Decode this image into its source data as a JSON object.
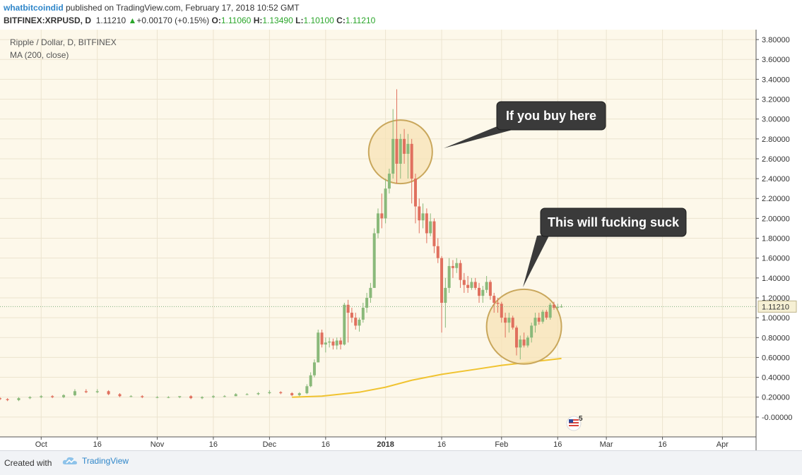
{
  "header": {
    "author": "whatbitcoindid",
    "published": "published on TradingView.com, February 17, 2018 10:52 GMT",
    "symbol": "BITFINEX:XRPUSD, D",
    "last": "1.11210",
    "change_arrow": "▲",
    "change": "+0.00170 (+0.15%)",
    "o_label": "O:",
    "o_val": "1.11060",
    "h_label": "H:",
    "h_val": "1.13490",
    "l_label": "L:",
    "l_val": "1.10100",
    "c_label": "C:",
    "c_val": "1.11210"
  },
  "legend": {
    "title": "Ripple / Dollar, D, BITFINEX",
    "indicator": "MA (200, close)"
  },
  "callouts": [
    {
      "text": "If you buy here"
    },
    {
      "text": "This will fucking suck"
    }
  ],
  "last_price_label": "1.11210",
  "flag_count": "5",
  "footer": {
    "created": "Created with",
    "brand": "TradingView"
  },
  "colors": {
    "background": "#fdf8ea",
    "up": "#8ab97a",
    "down": "#e0705e",
    "ma": "#f0c330",
    "circle_fill": "#f7e3b5",
    "circle_stroke": "#c9a75c",
    "callout_bg": "#3a3a3a",
    "last_price_bg": "#f6f0d4"
  },
  "chart_data": {
    "type": "candlestick",
    "title": "Ripple / Dollar, D, BITFINEX",
    "ylim": [
      -0.2,
      3.9
    ],
    "y_ticks": [
      "3.80000",
      "3.60000",
      "3.40000",
      "3.20000",
      "3.00000",
      "2.80000",
      "2.60000",
      "2.40000",
      "2.20000",
      "2.00000",
      "1.80000",
      "1.60000",
      "1.40000",
      "1.20000",
      "1.00000",
      "0.80000",
      "0.60000",
      "0.40000",
      "0.20000",
      "-0.00000"
    ],
    "y_tick_values": [
      3.8,
      3.6,
      3.4,
      3.2,
      3.0,
      2.8,
      2.6,
      2.4,
      2.2,
      2.0,
      1.8,
      1.6,
      1.4,
      1.2,
      1.0,
      0.8,
      0.6,
      0.4,
      0.2,
      0.0
    ],
    "x_labels": [
      {
        "label": "Oct",
        "date": "2017-10-01",
        "bold": false
      },
      {
        "label": "16",
        "date": "2017-10-16",
        "bold": false
      },
      {
        "label": "Nov",
        "date": "2017-11-01",
        "bold": false
      },
      {
        "label": "16",
        "date": "2017-11-16",
        "bold": false
      },
      {
        "label": "Dec",
        "date": "2017-12-01",
        "bold": false
      },
      {
        "label": "16",
        "date": "2017-12-16",
        "bold": false
      },
      {
        "label": "2018",
        "date": "2018-01-01",
        "bold": true
      },
      {
        "label": "16",
        "date": "2018-01-16",
        "bold": false
      },
      {
        "label": "Feb",
        "date": "2018-02-01",
        "bold": false
      },
      {
        "label": "16",
        "date": "2018-02-16",
        "bold": false
      },
      {
        "label": "Mar",
        "date": "2018-03-01",
        "bold": false
      },
      {
        "label": "16",
        "date": "2018-03-16",
        "bold": false
      },
      {
        "label": "Apr",
        "date": "2018-04-01",
        "bold": false
      }
    ],
    "x_start": "2017-09-20",
    "x_end": "2018-04-10",
    "last_price": 1.1121,
    "candles": [
      {
        "date": "2017-09-20",
        "o": 0.19,
        "h": 0.2,
        "l": 0.17,
        "c": 0.18
      },
      {
        "date": "2017-09-22",
        "o": 0.18,
        "h": 0.19,
        "l": 0.16,
        "c": 0.17
      },
      {
        "date": "2017-09-25",
        "o": 0.17,
        "h": 0.2,
        "l": 0.16,
        "c": 0.19
      },
      {
        "date": "2017-09-28",
        "o": 0.19,
        "h": 0.21,
        "l": 0.18,
        "c": 0.2
      },
      {
        "date": "2017-10-01",
        "o": 0.2,
        "h": 0.22,
        "l": 0.19,
        "c": 0.21
      },
      {
        "date": "2017-10-04",
        "o": 0.21,
        "h": 0.22,
        "l": 0.19,
        "c": 0.2
      },
      {
        "date": "2017-10-07",
        "o": 0.2,
        "h": 0.23,
        "l": 0.19,
        "c": 0.22
      },
      {
        "date": "2017-10-10",
        "o": 0.22,
        "h": 0.28,
        "l": 0.21,
        "c": 0.26
      },
      {
        "date": "2017-10-13",
        "o": 0.26,
        "h": 0.28,
        "l": 0.24,
        "c": 0.25
      },
      {
        "date": "2017-10-16",
        "o": 0.25,
        "h": 0.28,
        "l": 0.24,
        "c": 0.26
      },
      {
        "date": "2017-10-19",
        "o": 0.26,
        "h": 0.27,
        "l": 0.22,
        "c": 0.23
      },
      {
        "date": "2017-10-22",
        "o": 0.23,
        "h": 0.24,
        "l": 0.2,
        "c": 0.21
      },
      {
        "date": "2017-10-25",
        "o": 0.21,
        "h": 0.22,
        "l": 0.2,
        "c": 0.21
      },
      {
        "date": "2017-10-28",
        "o": 0.21,
        "h": 0.22,
        "l": 0.19,
        "c": 0.2
      },
      {
        "date": "2017-11-01",
        "o": 0.2,
        "h": 0.21,
        "l": 0.19,
        "c": 0.2
      },
      {
        "date": "2017-11-04",
        "o": 0.2,
        "h": 0.21,
        "l": 0.19,
        "c": 0.2
      },
      {
        "date": "2017-11-07",
        "o": 0.2,
        "h": 0.21,
        "l": 0.19,
        "c": 0.21
      },
      {
        "date": "2017-11-10",
        "o": 0.21,
        "h": 0.22,
        "l": 0.18,
        "c": 0.19
      },
      {
        "date": "2017-11-13",
        "o": 0.19,
        "h": 0.21,
        "l": 0.18,
        "c": 0.2
      },
      {
        "date": "2017-11-16",
        "o": 0.2,
        "h": 0.22,
        "l": 0.19,
        "c": 0.21
      },
      {
        "date": "2017-11-19",
        "o": 0.21,
        "h": 0.22,
        "l": 0.2,
        "c": 0.21
      },
      {
        "date": "2017-11-22",
        "o": 0.21,
        "h": 0.24,
        "l": 0.21,
        "c": 0.23
      },
      {
        "date": "2017-11-25",
        "o": 0.23,
        "h": 0.24,
        "l": 0.22,
        "c": 0.23
      },
      {
        "date": "2017-11-28",
        "o": 0.23,
        "h": 0.25,
        "l": 0.22,
        "c": 0.24
      },
      {
        "date": "2017-12-01",
        "o": 0.24,
        "h": 0.27,
        "l": 0.23,
        "c": 0.25
      },
      {
        "date": "2017-12-04",
        "o": 0.25,
        "h": 0.26,
        "l": 0.23,
        "c": 0.24
      },
      {
        "date": "2017-12-07",
        "o": 0.24,
        "h": 0.25,
        "l": 0.21,
        "c": 0.22
      },
      {
        "date": "2017-12-09",
        "o": 0.22,
        "h": 0.25,
        "l": 0.21,
        "c": 0.24
      },
      {
        "date": "2017-12-11",
        "o": 0.24,
        "h": 0.33,
        "l": 0.23,
        "c": 0.31
      },
      {
        "date": "2017-12-12",
        "o": 0.31,
        "h": 0.45,
        "l": 0.3,
        "c": 0.42
      },
      {
        "date": "2017-12-13",
        "o": 0.42,
        "h": 0.58,
        "l": 0.4,
        "c": 0.55
      },
      {
        "date": "2017-12-14",
        "o": 0.55,
        "h": 0.88,
        "l": 0.55,
        "c": 0.85
      },
      {
        "date": "2017-12-15",
        "o": 0.85,
        "h": 0.88,
        "l": 0.7,
        "c": 0.73
      },
      {
        "date": "2017-12-16",
        "o": 0.73,
        "h": 0.8,
        "l": 0.65,
        "c": 0.75
      },
      {
        "date": "2017-12-17",
        "o": 0.75,
        "h": 0.8,
        "l": 0.7,
        "c": 0.76
      },
      {
        "date": "2017-12-18",
        "o": 0.76,
        "h": 0.79,
        "l": 0.68,
        "c": 0.72
      },
      {
        "date": "2017-12-19",
        "o": 0.72,
        "h": 0.8,
        "l": 0.68,
        "c": 0.77
      },
      {
        "date": "2017-12-20",
        "o": 0.77,
        "h": 0.8,
        "l": 0.68,
        "c": 0.73
      },
      {
        "date": "2017-12-21",
        "o": 0.73,
        "h": 1.15,
        "l": 0.72,
        "c": 1.13
      },
      {
        "date": "2017-12-22",
        "o": 1.13,
        "h": 1.18,
        "l": 0.75,
        "c": 1.05
      },
      {
        "date": "2017-12-23",
        "o": 1.05,
        "h": 1.1,
        "l": 0.95,
        "c": 1.0
      },
      {
        "date": "2017-12-24",
        "o": 1.0,
        "h": 1.05,
        "l": 0.88,
        "c": 0.92
      },
      {
        "date": "2017-12-25",
        "o": 0.92,
        "h": 1.0,
        "l": 0.86,
        "c": 0.98
      },
      {
        "date": "2017-12-26",
        "o": 0.98,
        "h": 1.15,
        "l": 0.95,
        "c": 1.1
      },
      {
        "date": "2017-12-27",
        "o": 1.1,
        "h": 1.25,
        "l": 1.05,
        "c": 1.2
      },
      {
        "date": "2017-12-28",
        "o": 1.2,
        "h": 1.35,
        "l": 1.15,
        "c": 1.3
      },
      {
        "date": "2017-12-29",
        "o": 1.3,
        "h": 1.9,
        "l": 1.3,
        "c": 1.85
      },
      {
        "date": "2017-12-30",
        "o": 1.85,
        "h": 2.1,
        "l": 1.8,
        "c": 2.05
      },
      {
        "date": "2017-12-31",
        "o": 2.05,
        "h": 2.25,
        "l": 1.9,
        "c": 2.0
      },
      {
        "date": "2018-01-01",
        "o": 2.0,
        "h": 2.4,
        "l": 1.95,
        "c": 2.3
      },
      {
        "date": "2018-01-02",
        "o": 2.3,
        "h": 2.5,
        "l": 2.25,
        "c": 2.45
      },
      {
        "date": "2018-01-03",
        "o": 2.45,
        "h": 3.1,
        "l": 2.4,
        "c": 2.8
      },
      {
        "date": "2018-01-04",
        "o": 2.8,
        "h": 3.3,
        "l": 2.35,
        "c": 2.55
      },
      {
        "date": "2018-01-05",
        "o": 2.55,
        "h": 2.85,
        "l": 2.4,
        "c": 2.8
      },
      {
        "date": "2018-01-06",
        "o": 2.8,
        "h": 2.9,
        "l": 2.55,
        "c": 2.65
      },
      {
        "date": "2018-01-07",
        "o": 2.65,
        "h": 2.85,
        "l": 2.4,
        "c": 2.75
      },
      {
        "date": "2018-01-08",
        "o": 2.75,
        "h": 2.8,
        "l": 2.15,
        "c": 2.4
      },
      {
        "date": "2018-01-09",
        "o": 2.4,
        "h": 2.45,
        "l": 1.95,
        "c": 2.12
      },
      {
        "date": "2018-01-10",
        "o": 2.12,
        "h": 2.2,
        "l": 1.85,
        "c": 1.98
      },
      {
        "date": "2018-01-11",
        "o": 1.98,
        "h": 2.15,
        "l": 1.9,
        "c": 2.05
      },
      {
        "date": "2018-01-12",
        "o": 2.05,
        "h": 2.1,
        "l": 1.75,
        "c": 1.85
      },
      {
        "date": "2018-01-13",
        "o": 1.85,
        "h": 2.05,
        "l": 1.82,
        "c": 1.97
      },
      {
        "date": "2018-01-14",
        "o": 1.97,
        "h": 2.0,
        "l": 1.65,
        "c": 1.72
      },
      {
        "date": "2018-01-15",
        "o": 1.72,
        "h": 1.8,
        "l": 1.55,
        "c": 1.6
      },
      {
        "date": "2018-01-16",
        "o": 1.6,
        "h": 1.62,
        "l": 0.85,
        "c": 1.15
      },
      {
        "date": "2018-01-17",
        "o": 1.15,
        "h": 1.4,
        "l": 0.9,
        "c": 1.3
      },
      {
        "date": "2018-01-18",
        "o": 1.3,
        "h": 1.6,
        "l": 1.25,
        "c": 1.52
      },
      {
        "date": "2018-01-19",
        "o": 1.52,
        "h": 1.58,
        "l": 1.4,
        "c": 1.5
      },
      {
        "date": "2018-01-20",
        "o": 1.5,
        "h": 1.6,
        "l": 1.45,
        "c": 1.55
      },
      {
        "date": "2018-01-21",
        "o": 1.55,
        "h": 1.58,
        "l": 1.3,
        "c": 1.38
      },
      {
        "date": "2018-01-22",
        "o": 1.38,
        "h": 1.45,
        "l": 1.25,
        "c": 1.33
      },
      {
        "date": "2018-01-23",
        "o": 1.33,
        "h": 1.42,
        "l": 1.25,
        "c": 1.3
      },
      {
        "date": "2018-01-24",
        "o": 1.3,
        "h": 1.4,
        "l": 1.28,
        "c": 1.36
      },
      {
        "date": "2018-01-25",
        "o": 1.36,
        "h": 1.4,
        "l": 1.28,
        "c": 1.3
      },
      {
        "date": "2018-01-26",
        "o": 1.3,
        "h": 1.35,
        "l": 1.15,
        "c": 1.22
      },
      {
        "date": "2018-01-27",
        "o": 1.22,
        "h": 1.32,
        "l": 1.15,
        "c": 1.28
      },
      {
        "date": "2018-01-28",
        "o": 1.28,
        "h": 1.42,
        "l": 1.25,
        "c": 1.36
      },
      {
        "date": "2018-01-29",
        "o": 1.36,
        "h": 1.38,
        "l": 1.18,
        "c": 1.22
      },
      {
        "date": "2018-01-30",
        "o": 1.22,
        "h": 1.25,
        "l": 1.05,
        "c": 1.15
      },
      {
        "date": "2018-01-31",
        "o": 1.15,
        "h": 1.2,
        "l": 1.05,
        "c": 1.14
      },
      {
        "date": "2018-02-01",
        "o": 1.14,
        "h": 1.16,
        "l": 0.95,
        "c": 1.0
      },
      {
        "date": "2018-02-02",
        "o": 1.0,
        "h": 1.05,
        "l": 0.8,
        "c": 0.95
      },
      {
        "date": "2018-02-03",
        "o": 0.95,
        "h": 1.05,
        "l": 0.85,
        "c": 1.0
      },
      {
        "date": "2018-02-04",
        "o": 1.0,
        "h": 1.02,
        "l": 0.88,
        "c": 0.9
      },
      {
        "date": "2018-02-05",
        "o": 0.9,
        "h": 0.92,
        "l": 0.62,
        "c": 0.7
      },
      {
        "date": "2018-02-06",
        "o": 0.7,
        "h": 0.82,
        "l": 0.58,
        "c": 0.78
      },
      {
        "date": "2018-02-07",
        "o": 0.78,
        "h": 0.85,
        "l": 0.7,
        "c": 0.72
      },
      {
        "date": "2018-02-08",
        "o": 0.72,
        "h": 0.82,
        "l": 0.7,
        "c": 0.8
      },
      {
        "date": "2018-02-09",
        "o": 0.8,
        "h": 0.95,
        "l": 0.75,
        "c": 0.92
      },
      {
        "date": "2018-02-10",
        "o": 0.92,
        "h": 1.05,
        "l": 0.85,
        "c": 1.0
      },
      {
        "date": "2018-02-11",
        "o": 1.0,
        "h": 1.05,
        "l": 0.93,
        "c": 0.96
      },
      {
        "date": "2018-02-12",
        "o": 0.96,
        "h": 1.08,
        "l": 0.94,
        "c": 1.06
      },
      {
        "date": "2018-02-13",
        "o": 1.06,
        "h": 1.08,
        "l": 0.98,
        "c": 1.0
      },
      {
        "date": "2018-02-14",
        "o": 1.0,
        "h": 1.15,
        "l": 0.98,
        "c": 1.13
      },
      {
        "date": "2018-02-15",
        "o": 1.13,
        "h": 1.16,
        "l": 1.08,
        "c": 1.1
      },
      {
        "date": "2018-02-16",
        "o": 1.1,
        "h": 1.14,
        "l": 1.08,
        "c": 1.11
      },
      {
        "date": "2018-02-17",
        "o": 1.1106,
        "h": 1.1349,
        "l": 1.101,
        "c": 1.1121
      }
    ],
    "ma200": {
      "name": "",
      "points": [
        {
          "date": "2017-12-07",
          "v": 0.2
        },
        {
          "date": "2017-12-15",
          "v": 0.21
        },
        {
          "date": "2017-12-25",
          "v": 0.25
        },
        {
          "date": "2018-01-01",
          "v": 0.3
        },
        {
          "date": "2018-01-08",
          "v": 0.37
        },
        {
          "date": "2018-01-16",
          "v": 0.43
        },
        {
          "date": "2018-01-25",
          "v": 0.48
        },
        {
          "date": "2018-02-01",
          "v": 0.52
        },
        {
          "date": "2018-02-08",
          "v": 0.55
        },
        {
          "date": "2018-02-17",
          "v": 0.59
        }
      ]
    },
    "highlight_circles": [
      {
        "date": "2018-01-05",
        "price": 2.67,
        "r_days": 8.5
      },
      {
        "date": "2018-02-07",
        "price": 0.91,
        "r_days": 10.0
      }
    ],
    "grid": true
  }
}
